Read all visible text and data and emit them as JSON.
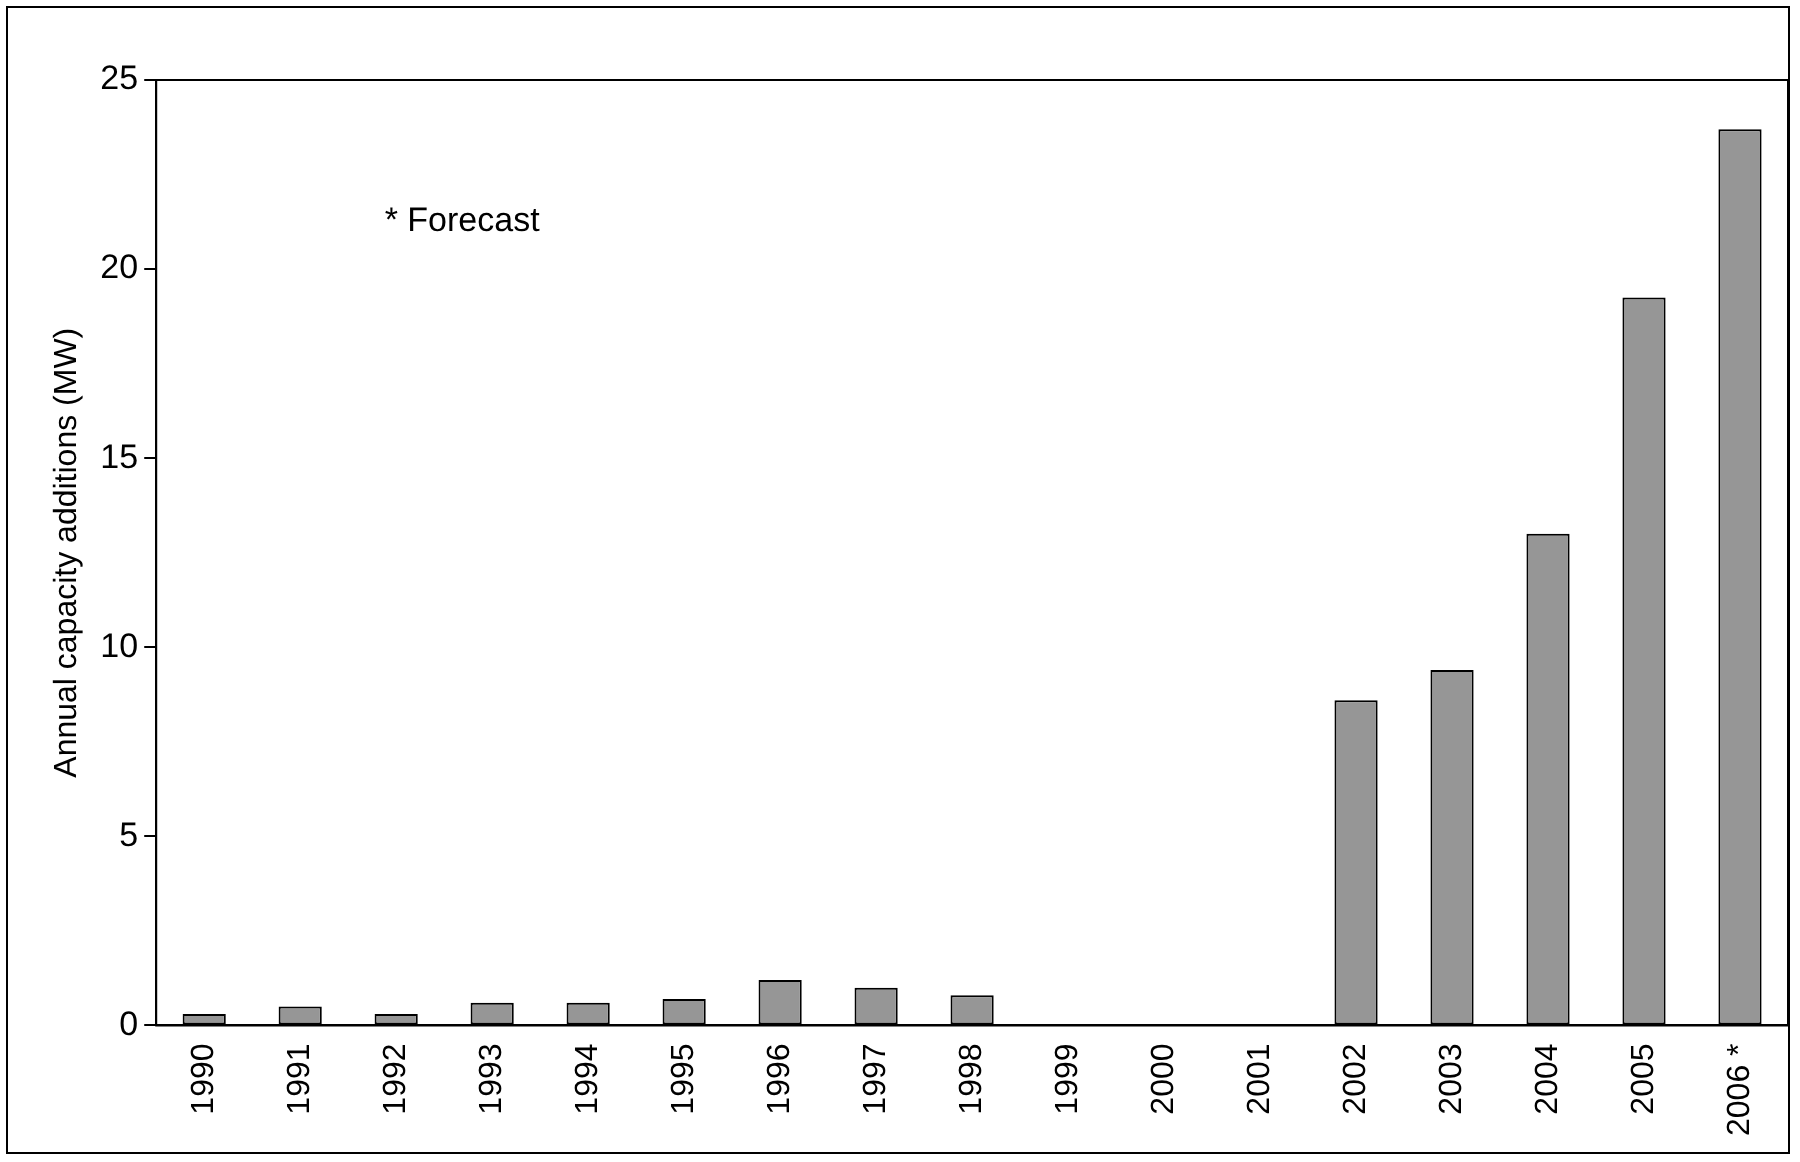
{
  "chart_data": {
    "type": "bar",
    "ylabel": "Annual capacity additions (MW)",
    "categories": [
      "1990",
      "1991",
      "1992",
      "1993",
      "1994",
      "1995",
      "1996",
      "1997",
      "1998",
      "1999",
      "2000",
      "2001",
      "2002",
      "2003",
      "2004",
      "2005",
      "2006 *"
    ],
    "values": [
      0.3,
      0.5,
      0.3,
      0.6,
      0.6,
      0.7,
      1.2,
      1.0,
      0.8,
      null,
      null,
      null,
      8.6,
      9.4,
      13.0,
      19.25,
      23.7
    ],
    "color": "#969696",
    "ylim": [
      0,
      25
    ],
    "yticks": [
      0,
      5,
      10,
      15,
      20,
      25
    ],
    "grid": false,
    "legend": false,
    "annotations": [
      "* Forecast"
    ]
  }
}
